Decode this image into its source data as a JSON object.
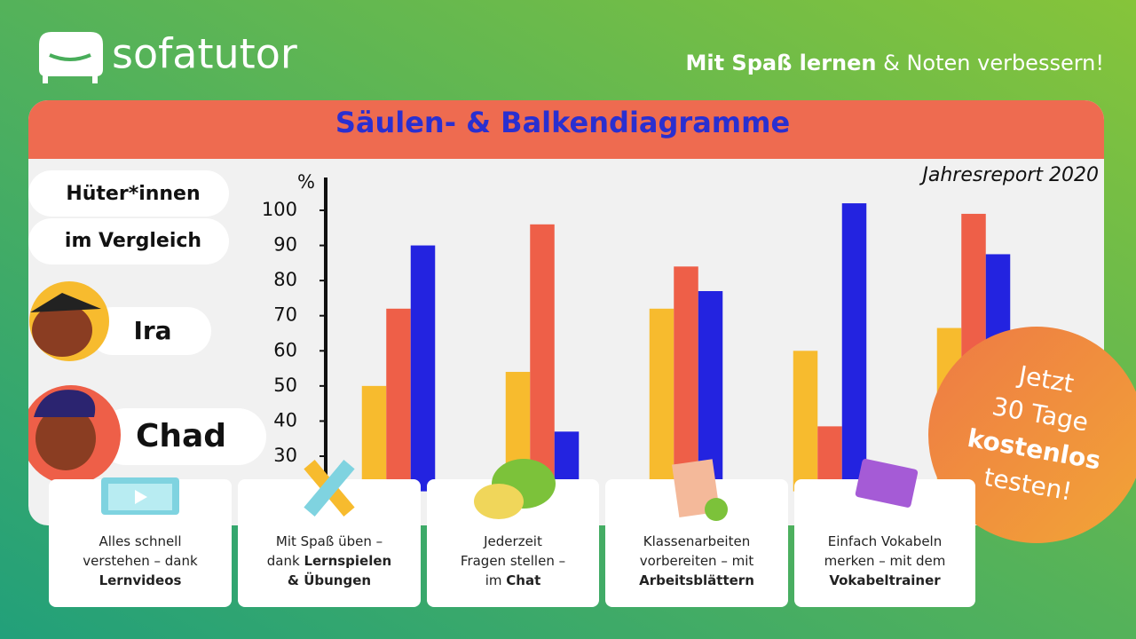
{
  "brand": "sofatutor",
  "tagline": {
    "bold": "Mit Spaß lernen",
    "rest": " & Noten verbessern!"
  },
  "panel": {
    "title": "Säulen- & Balkendiagramme",
    "subtitle": "Jahresreport 2020",
    "sidebar": [
      "Hüter*innen",
      "im Vergleich"
    ],
    "characters": [
      "Ira",
      "Chad"
    ]
  },
  "chart_data": {
    "type": "bar",
    "y_label": "%",
    "categories": [
      null,
      null,
      null,
      null,
      null
    ],
    "series": [
      {
        "color": "#f7bb2e",
        "values": [
          50,
          54,
          72,
          60,
          66.5
        ]
      },
      {
        "color": "#ee5f48",
        "values": [
          72,
          96,
          84,
          38.5,
          99
        ]
      },
      {
        "color": "#2323e0",
        "values": [
          90,
          37,
          77,
          102,
          87.5
        ]
      }
    ],
    "ylim": [
      20,
      110
    ],
    "yticks": [
      30,
      40,
      50,
      60,
      70,
      80,
      90,
      100
    ]
  },
  "badge": [
    {
      "t": "Jetzt",
      "b": false
    },
    {
      "t": "30 Tage",
      "b": false
    },
    {
      "t": "kostenlos",
      "b": true
    },
    {
      "t": "testen!",
      "b": false
    }
  ],
  "cards": [
    {
      "lines": [
        [
          {
            "t": "Alles schnell",
            "b": false
          }
        ],
        [
          {
            "t": "verstehen – dank",
            "b": false
          }
        ],
        [
          {
            "t": "Lernvideos",
            "b": true
          }
        ]
      ]
    },
    {
      "lines": [
        [
          {
            "t": "Mit Spaß üben –",
            "b": false
          }
        ],
        [
          {
            "t": "dank ",
            "b": false
          },
          {
            "t": "Lernspielen",
            "b": true
          }
        ],
        [
          {
            "t": "& Übungen",
            "b": true
          }
        ]
      ]
    },
    {
      "lines": [
        [
          {
            "t": "Jederzeit",
            "b": false
          }
        ],
        [
          {
            "t": "Fragen stellen –",
            "b": false
          }
        ],
        [
          {
            "t": "im ",
            "b": false
          },
          {
            "t": "Chat",
            "b": true
          }
        ]
      ]
    },
    {
      "lines": [
        [
          {
            "t": "Klassenarbeiten",
            "b": false
          }
        ],
        [
          {
            "t": "vorbereiten – mit",
            "b": false
          }
        ],
        [
          {
            "t": "Arbeitsblättern",
            "b": true
          }
        ]
      ]
    },
    {
      "lines": [
        [
          {
            "t": "Einfach Vokabeln",
            "b": false
          }
        ],
        [
          {
            "t": "merken – mit dem",
            "b": false
          }
        ],
        [
          {
            "t": "Vokabeltrainer",
            "b": true
          }
        ]
      ]
    }
  ]
}
